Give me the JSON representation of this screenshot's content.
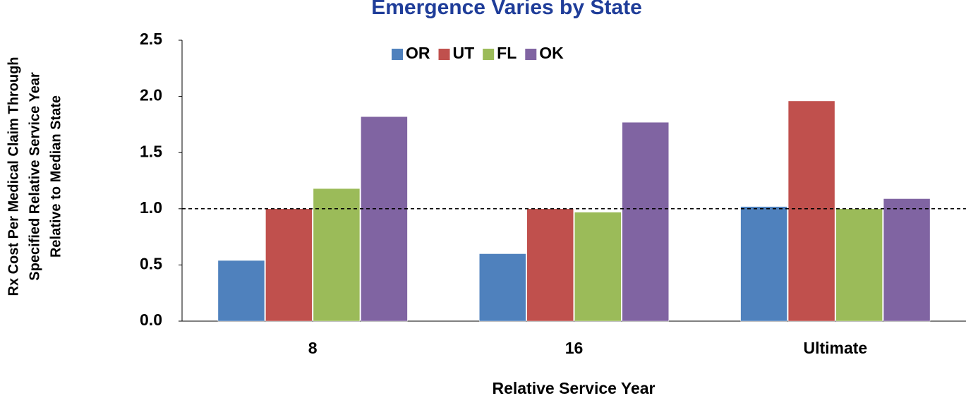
{
  "chart_data": {
    "type": "bar",
    "title": "Emergence Varies by State",
    "x_label": "Relative Service Year",
    "y_label": [
      "Rx Cost Per Medical Claim Through",
      "Specified Relative Service Year",
      "Relative to Median State"
    ],
    "categories": [
      "8",
      "16",
      "Ultimate"
    ],
    "series": [
      {
        "name": "OR",
        "color": "#4f81bd",
        "values": [
          0.54,
          0.6,
          1.02
        ]
      },
      {
        "name": "UT",
        "color": "#c0504d",
        "values": [
          1.0,
          1.0,
          1.96
        ]
      },
      {
        "name": "FL",
        "color": "#9bbb59",
        "values": [
          1.18,
          0.97,
          1.0
        ]
      },
      {
        "name": "OK",
        "color": "#8064a2",
        "values": [
          1.82,
          1.77,
          1.09
        ]
      }
    ],
    "ylim": [
      0,
      2.5
    ],
    "yticks": [
      {
        "value": 0,
        "label": "0.0"
      },
      0.5,
      {
        "value": 1,
        "label": "1.0"
      },
      1.5,
      {
        "value": 2,
        "label": "2.0"
      },
      2.5
    ],
    "reference_line": 1,
    "legend": "top"
  }
}
